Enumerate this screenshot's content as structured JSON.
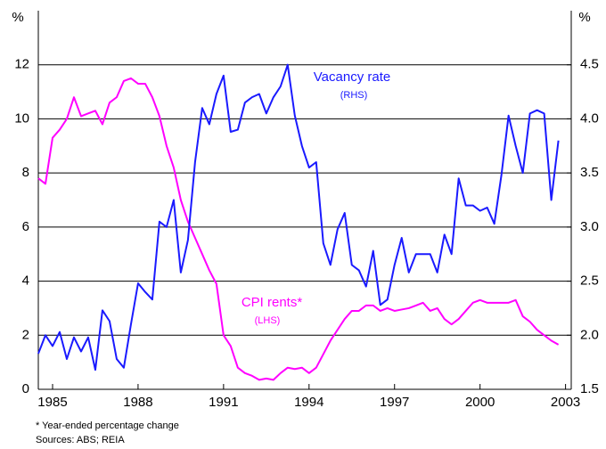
{
  "chart_data": {
    "type": "line",
    "y_unit": "%",
    "y2_unit": "%",
    "annotations": [
      "Vacancy rate",
      "(RHS)",
      "CPI rents*",
      "(LHS)"
    ],
    "footnote": "*  Year-ended percentage change",
    "source": "Sources: ABS; REIA",
    "x": [
      1984.5,
      1984.75,
      1985,
      1985.25,
      1985.5,
      1985.75,
      1986,
      1986.25,
      1986.5,
      1986.75,
      1987,
      1987.25,
      1987.5,
      1987.75,
      1988,
      1988.25,
      1988.5,
      1988.75,
      1989,
      1989.25,
      1989.5,
      1989.75,
      1990,
      1990.25,
      1990.5,
      1990.75,
      1991,
      1991.25,
      1991.5,
      1991.75,
      1992,
      1992.25,
      1992.5,
      1992.75,
      1993,
      1993.25,
      1993.5,
      1993.75,
      1994,
      1994.25,
      1994.5,
      1994.75,
      1995,
      1995.25,
      1995.5,
      1995.75,
      1996,
      1996.25,
      1996.5,
      1996.75,
      1997,
      1997.25,
      1997.5,
      1997.75,
      1998,
      1998.25,
      1998.5,
      1998.75,
      1999,
      1999.25,
      1999.5,
      1999.75,
      2000,
      2000.25,
      2000.5,
      2000.75,
      2001,
      2001.25,
      2001.5,
      2001.75,
      2002,
      2002.25,
      2002.5,
      2002.75
    ],
    "xlim": [
      1984.5,
      2003.2
    ],
    "xticks": [
      1985,
      1988,
      1991,
      1994,
      1997,
      2000,
      2003
    ],
    "ylim": [
      0,
      14
    ],
    "yticks": [
      0,
      2,
      4,
      6,
      8,
      10,
      12
    ],
    "y2lim": [
      1.5,
      5.0
    ],
    "y2ticks": [
      1.5,
      {
        "value": 2,
        "label": "2.0"
      },
      2.5,
      {
        "value": 3,
        "label": "3.0"
      },
      3.5,
      {
        "value": 4,
        "label": "4.0"
      },
      4.5
    ],
    "grid": true,
    "series": [
      {
        "name": "CPI rents",
        "color": "#ff00ff",
        "axis": "y",
        "values": [
          7.8,
          7.6,
          9.3,
          9.6,
          10.0,
          10.8,
          10.1,
          10.2,
          10.3,
          9.8,
          10.6,
          10.8,
          11.4,
          11.5,
          11.3,
          11.3,
          10.8,
          10.1,
          9.0,
          8.2,
          7.0,
          6.2,
          5.6,
          5.0,
          4.4,
          3.9,
          2.0,
          1.6,
          0.8,
          0.6,
          0.5,
          0.35,
          0.4,
          0.35,
          0.6,
          0.8,
          0.75,
          0.8,
          0.6,
          0.8,
          1.3,
          1.8,
          2.2,
          2.6,
          2.9,
          2.9,
          3.1,
          3.1,
          2.9,
          3.0,
          2.9,
          2.95,
          3.0,
          3.1,
          3.2,
          2.9,
          3.0,
          2.6,
          2.4,
          2.6,
          2.9,
          3.2,
          3.3,
          3.2,
          3.2,
          3.2,
          3.2,
          3.3,
          2.7,
          2.5,
          2.2,
          2.0,
          1.8,
          1.65
        ]
      },
      {
        "name": "Vacancy rate",
        "color": "#1a1aff",
        "axis": "y2",
        "values": [
          1.83,
          2.0,
          1.9,
          2.03,
          1.78,
          1.98,
          1.85,
          1.98,
          1.68,
          2.23,
          2.13,
          1.78,
          1.7,
          2.1,
          2.48,
          2.4,
          2.33,
          3.05,
          3.0,
          3.25,
          2.58,
          2.88,
          3.6,
          4.1,
          3.95,
          4.23,
          4.4,
          3.88,
          3.9,
          4.15,
          4.2,
          4.23,
          4.05,
          4.2,
          4.3,
          4.5,
          4.03,
          3.75,
          3.55,
          3.6,
          2.85,
          2.65,
          2.98,
          3.13,
          2.65,
          2.6,
          2.45,
          2.78,
          2.28,
          2.33,
          2.65,
          2.9,
          2.58,
          2.75,
          2.75,
          2.75,
          2.58,
          2.93,
          2.75,
          3.45,
          3.2,
          3.2,
          3.15,
          3.18,
          3.03,
          3.48,
          4.03,
          3.75,
          3.5,
          4.05,
          4.08,
          4.05,
          3.25,
          3.8
        ]
      }
    ]
  }
}
